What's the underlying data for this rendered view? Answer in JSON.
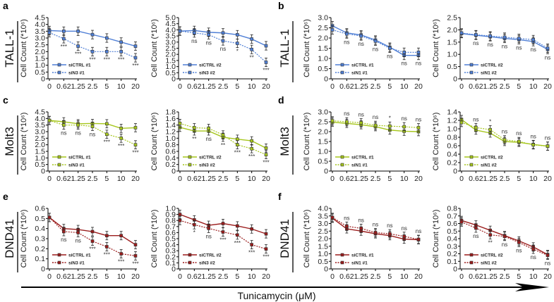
{
  "panels": [
    {
      "letter": "a",
      "cell_line": "TALL-1"
    },
    {
      "letter": "b",
      "cell_line": "TALL-1"
    },
    {
      "letter": "c",
      "cell_line": "Molt3"
    },
    {
      "letter": "d",
      "cell_line": "Molt3"
    },
    {
      "letter": "e",
      "cell_line": "DND41"
    },
    {
      "letter": "f",
      "cell_line": "DND41"
    }
  ],
  "x_axis_title": "Tunicamycin (μM)",
  "colors": {
    "TALL-1": "#4f7fd6",
    "Molt3": "#a6c61c",
    "DND41": "#9b1c1c"
  },
  "chart_data": [
    {
      "panel": "a",
      "type": "line",
      "ylabel": "Cell Count (*10⁶)",
      "categories": [
        "0",
        "0.62",
        "1.25",
        "2.5",
        "5",
        "10",
        "20"
      ],
      "ylim": [
        0,
        4.5
      ],
      "ystep": 0.5,
      "color_key": "TALL-1",
      "sig_pos": "below",
      "series": [
        {
          "name": "siCTRL #1",
          "style": "solid",
          "values": [
            3.55,
            3.5,
            3.5,
            3.25,
            3.0,
            2.7,
            2.4
          ]
        },
        {
          "name": "siN3 #1",
          "style": "dotted",
          "values": [
            3.4,
            2.95,
            2.4,
            2.0,
            2.0,
            2.0,
            1.55
          ]
        }
      ],
      "significance": [
        "",
        "***",
        "***",
        "***",
        "***",
        "***",
        "***"
      ]
    },
    {
      "panel": "a",
      "type": "line",
      "ylabel": "Cell Count (*10⁶)",
      "categories": [
        "0",
        "0.62",
        "1.25",
        "2.5",
        "5",
        "10",
        "20"
      ],
      "ylim": [
        0,
        5.0
      ],
      "ystep": 0.5,
      "color_key": "TALL-1",
      "sig_pos": "below",
      "series": [
        {
          "name": "siCTRL #2",
          "style": "solid",
          "values": [
            3.9,
            3.95,
            3.8,
            3.75,
            3.6,
            3.25,
            2.7
          ]
        },
        {
          "name": "siN3 #2",
          "style": "dotted",
          "values": [
            3.9,
            3.75,
            3.6,
            3.1,
            2.9,
            2.4,
            1.35
          ]
        }
      ],
      "significance": [
        "",
        "ns",
        "ns",
        "ns",
        "*",
        "**",
        "***"
      ]
    },
    {
      "panel": "b",
      "type": "line",
      "ylabel": "Cell Count (*10⁶)",
      "categories": [
        "0",
        "0.62",
        "1.25",
        "2.5",
        "5",
        "10",
        "20"
      ],
      "ylim": [
        0,
        3.0
      ],
      "ystep": 0.5,
      "color_key": "TALL-1",
      "sig_pos": "below",
      "series": [
        {
          "name": "siCTRL #1",
          "style": "solid",
          "values": [
            2.6,
            2.25,
            2.15,
            1.9,
            1.55,
            1.15,
            1.15
          ]
        },
        {
          "name": "siN1 #1",
          "style": "dotted",
          "values": [
            2.4,
            2.2,
            2.1,
            1.85,
            1.5,
            1.3,
            1.3
          ]
        }
      ],
      "significance": [
        "",
        "ns",
        "ns",
        "ns",
        "ns",
        "ns",
        "ns"
      ]
    },
    {
      "panel": "b",
      "type": "line",
      "ylabel": "Cell Count (*10⁶)",
      "categories": [
        "0",
        "0.62",
        "1.25",
        "2.5",
        "5",
        "10",
        "20"
      ],
      "ylim": [
        0,
        2.5
      ],
      "ystep": 0.5,
      "color_key": "TALL-1",
      "sig_pos": "below",
      "series": [
        {
          "name": "siCTRL #2",
          "style": "solid",
          "values": [
            1.85,
            1.78,
            1.72,
            1.65,
            1.6,
            1.52,
            1.2
          ]
        },
        {
          "name": "siN1 #2",
          "style": "dotted",
          "values": [
            1.87,
            1.8,
            1.75,
            1.7,
            1.65,
            1.6,
            1.25
          ]
        }
      ],
      "significance": [
        "",
        "ns",
        "ns",
        "ns",
        "ns",
        "ns",
        "ns"
      ]
    },
    {
      "panel": "c",
      "type": "line",
      "ylabel": "Cell Count (*10⁶)",
      "categories": [
        "0",
        "0.62",
        "1.25",
        "2.5",
        "5",
        "10",
        "20"
      ],
      "ylim": [
        0,
        4.5
      ],
      "ystep": 0.5,
      "color_key": "Molt3",
      "sig_pos": "below",
      "series": [
        {
          "name": "siCTRL #1",
          "style": "solid",
          "values": [
            3.85,
            3.75,
            3.6,
            3.62,
            3.6,
            3.25,
            3.3
          ]
        },
        {
          "name": "siN3 #1",
          "style": "dotted",
          "values": [
            3.85,
            3.5,
            3.5,
            3.4,
            2.8,
            2.5,
            2.0
          ]
        }
      ],
      "significance": [
        "",
        "ns",
        "ns",
        "ns",
        "***",
        "***",
        "***"
      ]
    },
    {
      "panel": "c",
      "type": "line",
      "ylabel": "Cell Count (*10⁶)",
      "categories": [
        "0",
        "0.62",
        "1.25",
        "2.5",
        "5",
        "10",
        "20"
      ],
      "ylim": [
        0,
        1.8
      ],
      "ystep": 0.2,
      "color_key": "Molt3",
      "sig_pos": "below",
      "series": [
        {
          "name": "siCTRL #2",
          "style": "solid",
          "values": [
            1.33,
            1.22,
            1.22,
            1.03,
            0.97,
            0.92,
            0.7
          ]
        },
        {
          "name": "siN3 #2",
          "style": "dotted",
          "values": [
            1.45,
            1.32,
            1.3,
            1.1,
            0.8,
            0.68,
            0.5
          ]
        }
      ],
      "significance": [
        "",
        "**",
        "ns",
        "**",
        "***",
        "***",
        "***"
      ]
    },
    {
      "panel": "d",
      "type": "line",
      "ylabel": "Cell Count (*10⁶)",
      "categories": [
        "0",
        "0.62",
        "1.25",
        "2.5",
        "5",
        "10",
        "20"
      ],
      "ylim": [
        0,
        3.0
      ],
      "ystep": 0.5,
      "color_key": "Molt3",
      "sig_pos": "above",
      "series": [
        {
          "name": "siCTRL #1",
          "style": "solid",
          "values": [
            2.48,
            2.42,
            2.35,
            2.25,
            2.08,
            2.02,
            2.0
          ]
        },
        {
          "name": "siN1 #1",
          "style": "dotted",
          "values": [
            2.55,
            2.5,
            2.45,
            2.32,
            2.28,
            2.25,
            2.2
          ]
        }
      ],
      "significance": [
        "",
        "ns",
        "ns",
        "ns",
        "*",
        "ns",
        "ns"
      ]
    },
    {
      "panel": "d",
      "type": "line",
      "ylabel": "Cell Count (*10⁶)",
      "categories": [
        "0",
        "0.62",
        "1.25",
        "2.5",
        "5",
        "10",
        "20"
      ],
      "ylim": [
        0,
        1.4
      ],
      "ystep": 0.2,
      "color_key": "Molt3",
      "sig_pos": "above",
      "series": [
        {
          "name": "siCTRL #2",
          "style": "solid",
          "values": [
            1.22,
            0.97,
            0.9,
            0.7,
            0.68,
            0.63,
            0.59
          ]
        },
        {
          "name": "siN1 #2",
          "style": "dotted",
          "values": [
            1.15,
            1.03,
            0.98,
            0.74,
            0.7,
            0.62,
            0.59
          ]
        }
      ],
      "significance": [
        "",
        "ns",
        "*",
        "ns",
        "ns",
        "ns",
        "ns"
      ]
    },
    {
      "panel": "e",
      "type": "line",
      "ylabel": "Cell Count (*10⁶)",
      "categories": [
        "0",
        "0.62",
        "1.25",
        "2.5",
        "5",
        "10",
        "20"
      ],
      "ylim": [
        0,
        0.6
      ],
      "ystep": 0.1,
      "color_key": "DND41",
      "sig_pos": "below",
      "series": [
        {
          "name": "siCTRL #1",
          "style": "solid",
          "values": [
            0.51,
            0.4,
            0.39,
            0.37,
            0.33,
            0.33,
            0.24
          ]
        },
        {
          "name": "siN3 #1",
          "style": "dotted",
          "values": [
            0.51,
            0.37,
            0.36,
            0.275,
            0.22,
            0.15,
            0.13
          ]
        }
      ],
      "significance": [
        "",
        "ns",
        "ns",
        "***",
        "***",
        "***",
        "***"
      ]
    },
    {
      "panel": "e",
      "type": "line",
      "ylabel": "Cell Count (*10⁶)",
      "categories": [
        "0",
        "0.62",
        "1.25",
        "2.5",
        "5",
        "10",
        "20"
      ],
      "ylim": [
        0,
        1.0
      ],
      "ystep": 0.1,
      "color_key": "DND41",
      "sig_pos": "below",
      "series": [
        {
          "name": "siCTRL #2",
          "style": "solid",
          "values": [
            0.9,
            0.81,
            0.72,
            0.75,
            0.71,
            0.66,
            0.58
          ]
        },
        {
          "name": "siN3 #2",
          "style": "dotted",
          "values": [
            0.8,
            0.73,
            0.67,
            0.61,
            0.56,
            0.4,
            0.33
          ]
        }
      ],
      "significance": [
        "",
        "*",
        "ns",
        "***",
        "***",
        "***",
        "***"
      ]
    },
    {
      "panel": "f",
      "type": "line",
      "ylabel": "Cell Count (*10⁶)",
      "categories": [
        "0",
        "0.62",
        "1.25",
        "2.5",
        "5",
        "10",
        "20"
      ],
      "ylim": [
        0,
        4.0
      ],
      "ystep": 0.5,
      "color_key": "DND41",
      "sig_pos": "above",
      "series": [
        {
          "name": "siCTRL #1",
          "style": "solid",
          "values": [
            3.35,
            2.65,
            2.5,
            2.32,
            2.2,
            1.97,
            1.93
          ]
        },
        {
          "name": "siN1 #1",
          "style": "dotted",
          "values": [
            3.4,
            2.82,
            2.68,
            2.4,
            2.32,
            2.15,
            1.95
          ]
        }
      ],
      "significance": [
        "",
        "ns",
        "ns",
        "ns",
        "ns",
        "ns",
        "ns"
      ]
    },
    {
      "panel": "f",
      "type": "line",
      "ylabel": "Cell Count (*10⁶)",
      "categories": [
        "0",
        "0.62",
        "1.25",
        "2.5",
        "5",
        "10",
        "20"
      ],
      "ylim": [
        0,
        0.8
      ],
      "ystep": 0.1,
      "color_key": "DND41",
      "sig_pos": "below",
      "series": [
        {
          "name": "siCTRL #2",
          "style": "solid",
          "values": [
            0.64,
            0.58,
            0.51,
            0.44,
            0.37,
            0.29,
            0.19
          ]
        },
        {
          "name": "siN1 #2",
          "style": "dotted",
          "values": [
            0.62,
            0.54,
            0.45,
            0.43,
            0.35,
            0.26,
            0.18
          ]
        }
      ],
      "significance": [
        "",
        "ns",
        "**",
        "ns",
        "ns",
        "ns",
        "ns"
      ]
    }
  ]
}
